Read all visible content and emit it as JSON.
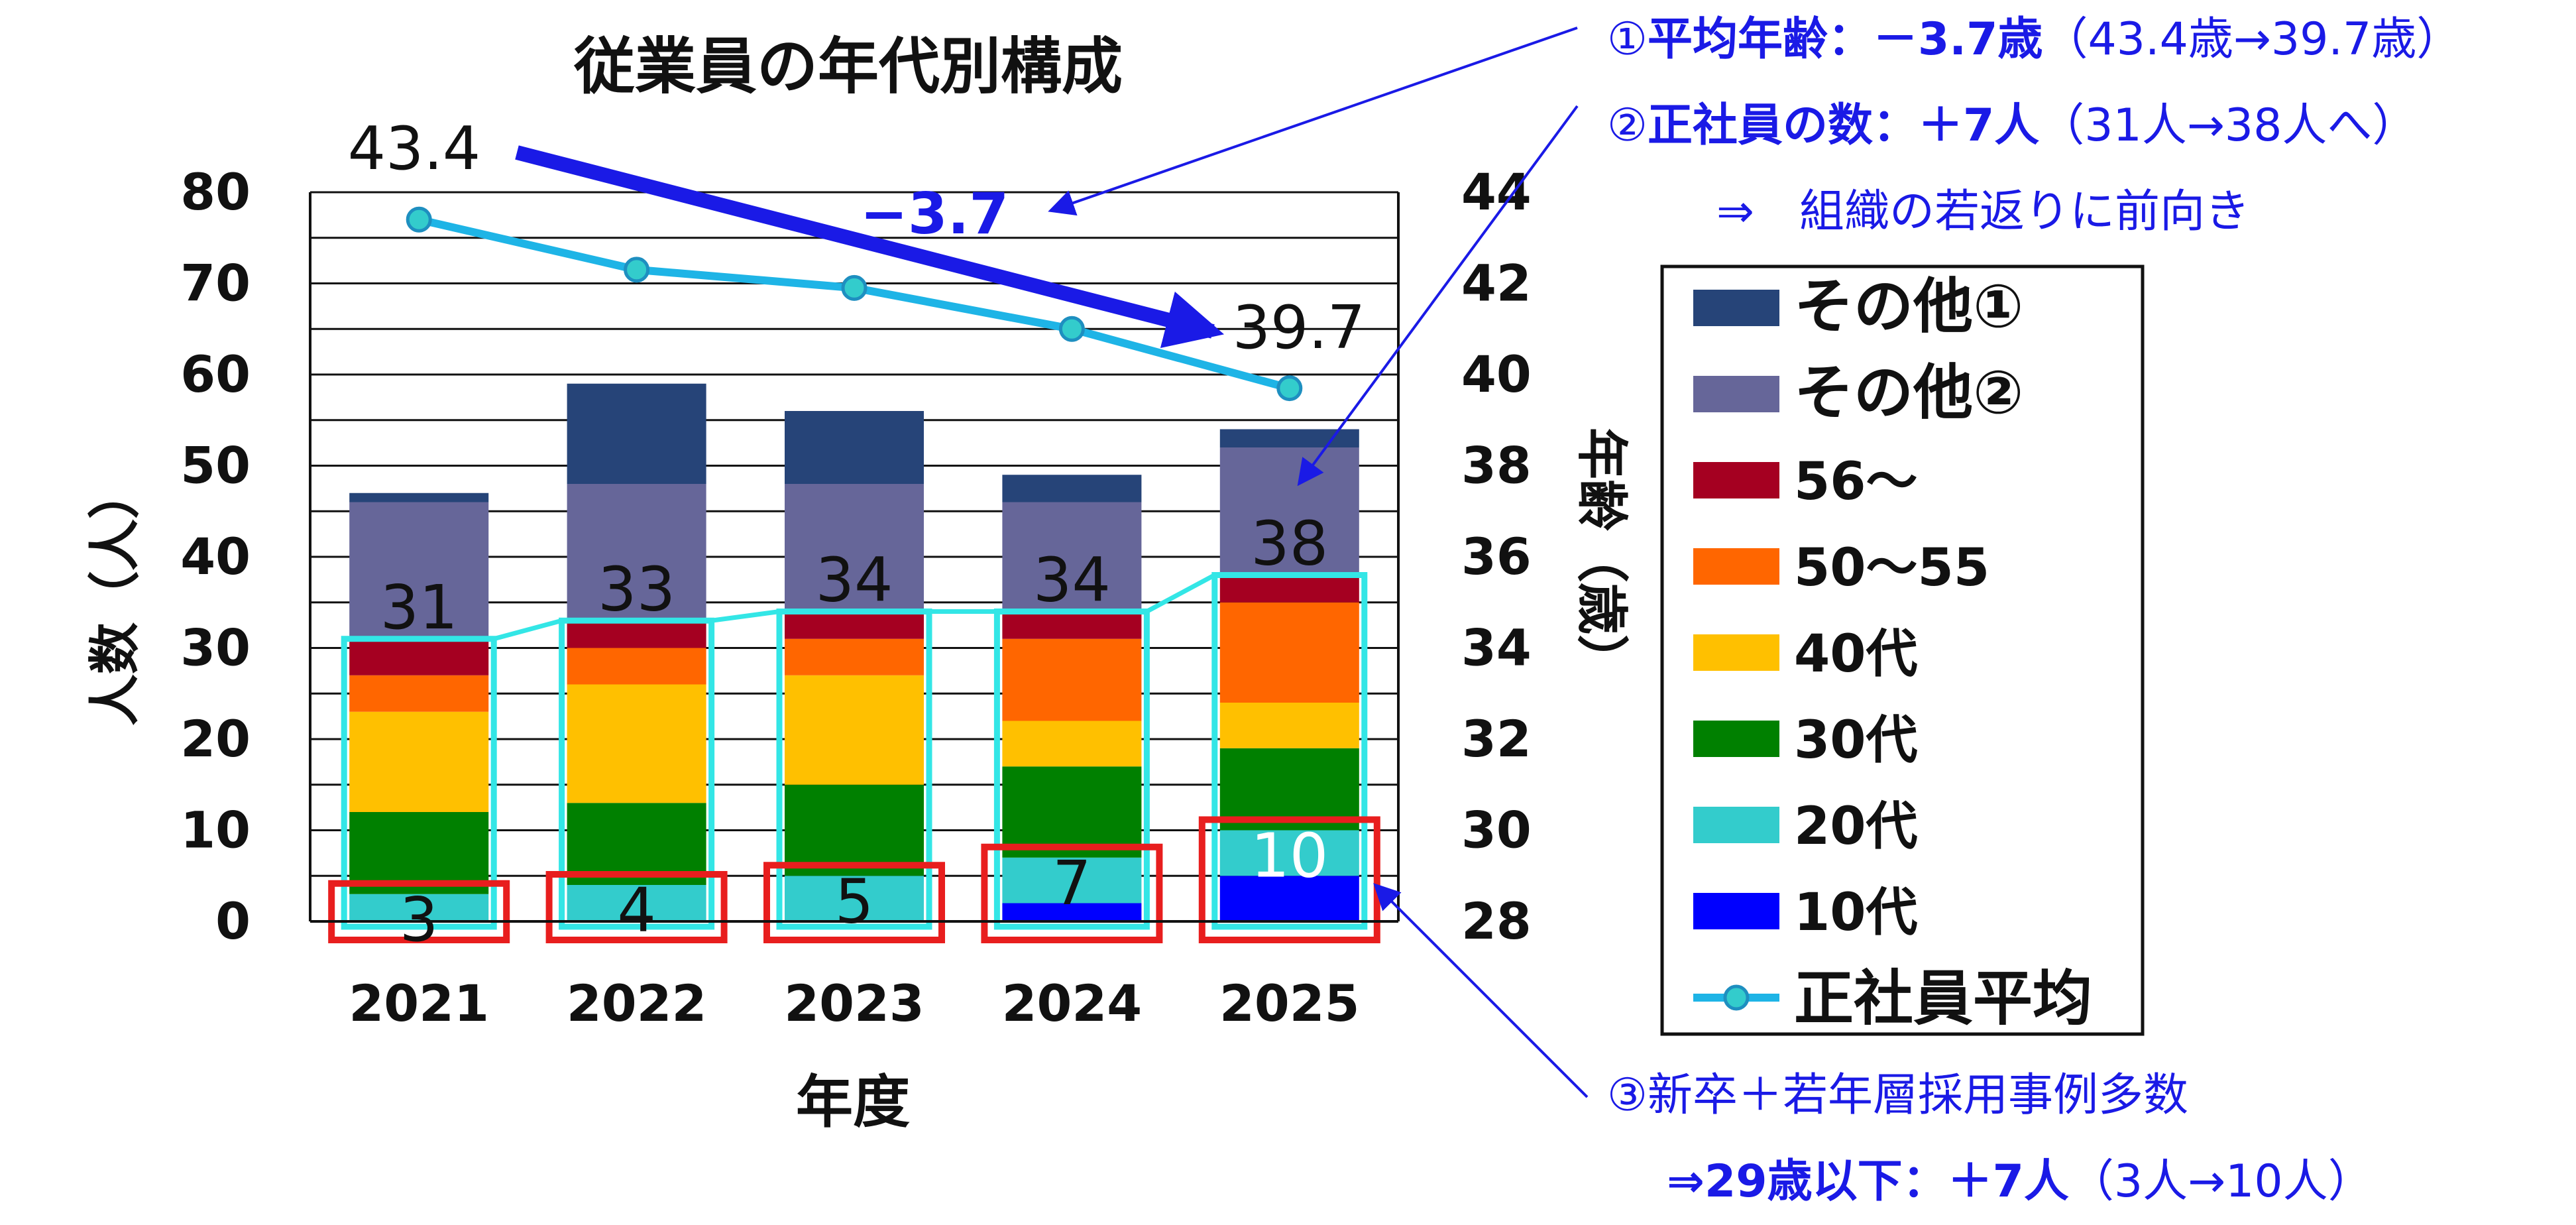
{
  "chart_data": {
    "type": "bar",
    "title": "従業員の年代別構成",
    "xlabel": "年度",
    "ylabel": "人数（人）",
    "y2label": "年齢（歳）",
    "categories": [
      "2021",
      "2022",
      "2023",
      "2024",
      "2025"
    ],
    "ylim": [
      0,
      80
    ],
    "yticks": [
      0,
      10,
      20,
      30,
      40,
      50,
      60,
      70,
      80
    ],
    "y2lim": [
      28,
      44
    ],
    "y2ticks": [
      28,
      30,
      32,
      34,
      36,
      38,
      40,
      42,
      44
    ],
    "grid": true,
    "series": [
      {
        "name": "10代",
        "color": "#0000FF",
        "values": [
          0,
          0,
          0,
          2,
          5
        ]
      },
      {
        "name": "20代",
        "color": "#33CCCC",
        "values": [
          3,
          4,
          5,
          5,
          5
        ]
      },
      {
        "name": "30代",
        "color": "#008000",
        "values": [
          9,
          9,
          10,
          10,
          9
        ]
      },
      {
        "name": "40代",
        "color": "#FFC000",
        "values": [
          11,
          13,
          12,
          5,
          5
        ]
      },
      {
        "name": "50〜55",
        "color": "#FF6600",
        "values": [
          4,
          4,
          4,
          9,
          11
        ]
      },
      {
        "name": "56〜",
        "color": "#A50021",
        "values": [
          4,
          3,
          3,
          3,
          3
        ]
      },
      {
        "name": "その他②",
        "color": "#666699",
        "values": [
          15,
          15,
          14,
          12,
          14
        ]
      },
      {
        "name": "その他①",
        "color": "#264478",
        "values": [
          1,
          11,
          8,
          3,
          2
        ]
      }
    ],
    "line": {
      "name": "正社員平均",
      "color": "#1EB4E6",
      "marker_color": "#33CCCC",
      "values": [
        43.4,
        42.3,
        41.9,
        41.0,
        39.7
      ]
    },
    "regular_counts": [
      31,
      33,
      34,
      34,
      38
    ],
    "young_counts": [
      3,
      4,
      5,
      7,
      10
    ],
    "avg_start_label": "43.4",
    "avg_end_label": "39.7",
    "delta_label": "−3.7",
    "legend_position": "right"
  },
  "annotations": {
    "note1_prefix": "①",
    "note1_bold": "平均年齢：－3.7歳",
    "note1_rest": "（43.4歳→39.7歳）",
    "note2_prefix": "②",
    "note2_bold": "正社員の数：＋7人",
    "note2_rest": "（31人→38人へ）",
    "note2_sub": "⇒　組織の若返りに前向き",
    "note3_line1": "③新卒＋若年層採用事例多数",
    "note3_line2_bold": "⇒29歳以下：＋7人",
    "note3_line2_rest": "（3人→10人）"
  },
  "colors": {
    "annotation_blue": "#1A1AE6",
    "highlight_red": "#E81E1E",
    "highlight_cyan": "#33E6E6",
    "arrow_blue": "#1A1AE6"
  }
}
